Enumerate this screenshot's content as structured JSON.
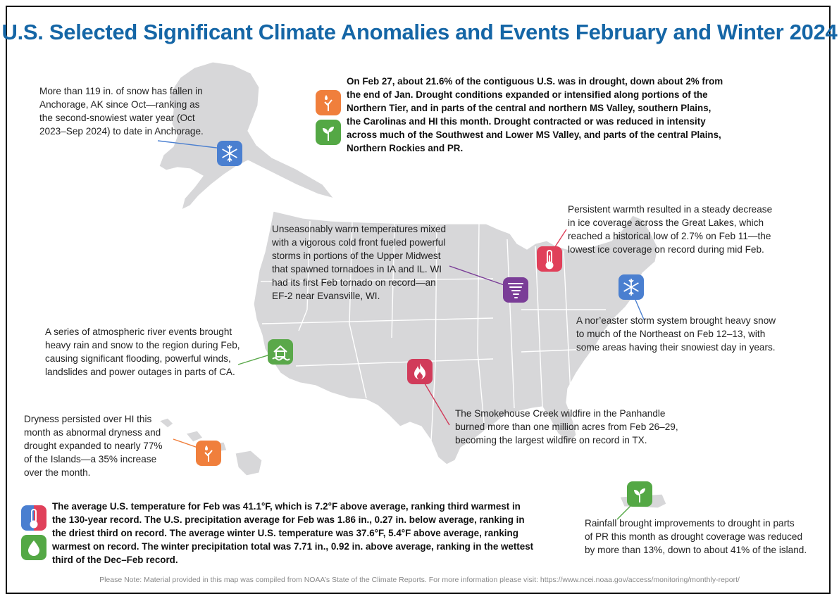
{
  "title": "U.S. Selected Significant Climate Anomalies and Events February and Winter 2024",
  "colors": {
    "title": "#1566a6",
    "map_land": "#d7d7d9",
    "drought_orange": "#f07f3c",
    "wet_green": "#54a845",
    "snow_blue": "#4a7fd0",
    "heat_red": "#e0405a",
    "tornado_purple": "#7a3d97",
    "fire_red": "#d13b5a",
    "flood_green": "#5aa84a"
  },
  "annotations": {
    "alaska_snow": {
      "text": "More than 119 in. of snow has fallen in\nAnchorage, AK since Oct—ranking as\nthe second-snowiest water year (Oct\n2023–Sep 2024) to date in Anchorage.",
      "icon": "snowflake-icon"
    },
    "drought_summary": {
      "text": "On Feb 27, about 21.6% of the contiguous U.S. was in drought, down about 2% from\nthe end of Jan. Drought conditions expanded or intensified along portions of the\nNorthern Tier, and in parts of the central and northern MS Valley, southern Plains,\nthe Carolinas and HI this month. Drought contracted or was reduced in intensity\nacross much of the Southwest and Lower MS Valley, and parts of the central Plains,\nNorthern Rockies and PR.",
      "icons": [
        "drought-icon",
        "improvement-icon"
      ]
    },
    "great_lakes_ice": {
      "text": "Persistent warmth resulted in a steady decrease\nin ice coverage across the Great Lakes, which\nreached a historical low of 2.7% on Feb 11—the\nlowest ice coverage on record during mid Feb.",
      "icon": "thermometer-hot-icon"
    },
    "midwest_tornado": {
      "text": "Unseasonably warm temperatures mixed\nwith a vigorous cold front fueled powerful\nstorms in portions of the Upper Midwest\nthat spawned tornadoes in IA and IL. WI\nhad its first Feb tornado on record—an\nEF-2 near Evansville, WI.",
      "icon": "tornado-icon"
    },
    "noreaster": {
      "text": "A nor’easter storm system brought heavy snow\nto much of the Northeast on Feb 12–13, with\nsome areas having their snowiest day in years.",
      "icon": "snowflake-icon"
    },
    "california_river": {
      "text": "A series of atmospheric river events brought\nheavy rain and snow to the region during Feb,\ncausing significant flooding, powerful winds,\nlandslides and power outages in parts of CA.",
      "icon": "flood-house-icon"
    },
    "texas_fire": {
      "text": "The Smokehouse Creek wildfire in the Panhandle\nburned more than one million acres from Feb 26–29,\nbecoming the largest wildfire on record in TX.",
      "icon": "wildfire-icon"
    },
    "hawaii_dry": {
      "text": "Dryness persisted over HI this\nmonth as abnormal dryness and\ndrought expanded to nearly 77%\nof the Islands—a 35% increase\nover the month.",
      "icon": "drought-icon"
    },
    "national_summary": {
      "text": "The average U.S. temperature for Feb was 41.1°F, which is 7.2°F above average, ranking third warmest in\nthe 130-year record. The U.S. precipitation average for Feb was 1.86 in., 0.27 in. below average, ranking in\nthe driest third on record. The average winter U.S. temperature was 37.6°F, 5.4°F above average, ranking\nwarmest on record. The winter precipitation total was 7.71 in., 0.92 in. above average, ranking in the wettest\nthird of the Dec–Feb record.",
      "icons": [
        "thermometer-icon",
        "precipitation-icon"
      ]
    },
    "puerto_rico": {
      "text": "Rainfall brought improvements to drought in parts\nof PR this month as drought coverage was reduced\nby more than 13%, down to about 41% of the island.",
      "icon": "improvement-icon"
    }
  },
  "note": "Please Note: Material provided in this map was compiled from NOAA’s State of the Climate Reports. For more information please visit: https://www.ncei.noaa.gov/access/monitoring/monthly-report/"
}
